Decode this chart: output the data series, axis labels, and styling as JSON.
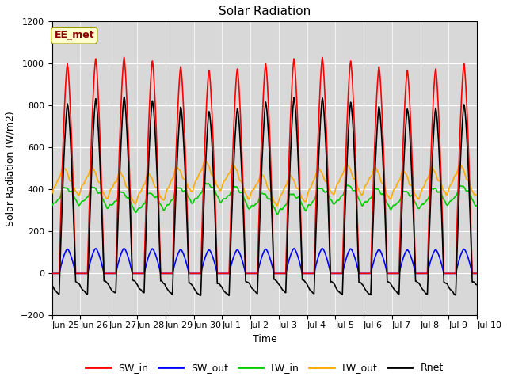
{
  "title": "Solar Radiation",
  "xlabel": "Time",
  "ylabel": "Solar Radiation (W/m2)",
  "ylim": [
    -200,
    1200
  ],
  "yticks": [
    -200,
    0,
    200,
    400,
    600,
    800,
    1000,
    1200
  ],
  "background_color": "#ffffff",
  "plot_bg_color": "#d8d8d8",
  "annotation_text": "EE_met",
  "annotation_color": "#8b0000",
  "annotation_bg": "#ffffcc",
  "n_days": 15,
  "dt_minutes": 30,
  "SW_in_peak": 1030,
  "SW_out_peak": 120,
  "LW_in_base": 360,
  "LW_in_amp": 40,
  "LW_out_base": 430,
  "LW_out_amp": 60,
  "Rnet_night": -80,
  "colors": {
    "SW_in": "#ff0000",
    "SW_out": "#0000ff",
    "LW_in": "#00cc00",
    "LW_out": "#ffaa00",
    "Rnet": "#000000"
  },
  "linewidth": 1.2,
  "tick_labels": [
    "Jun 25",
    "Jun 26",
    "Jun 27",
    "Jun 28",
    "Jun 29",
    "Jun 30",
    "Jul 1",
    "Jul 2",
    "Jul 3",
    "Jul 4",
    "Jul 5",
    "Jul 6",
    "Jul 7",
    "Jul 8",
    "Jul 9",
    "Jul 10"
  ]
}
